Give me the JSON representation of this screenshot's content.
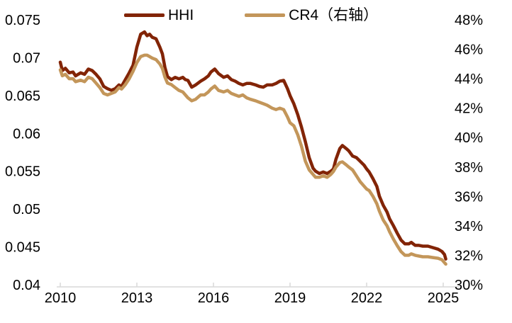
{
  "chart_data": {
    "type": "line",
    "title": "",
    "xlabel": "",
    "ylabel_left": "",
    "ylabel_right": "",
    "legend_position": "top",
    "grid": false,
    "axis_color": "#D9D9D9",
    "text_color": "#000000",
    "x": [
      2010.0,
      2010.08,
      2010.2,
      2010.35,
      2010.5,
      2010.6,
      2010.8,
      2010.95,
      2011.1,
      2011.25,
      2011.4,
      2011.55,
      2011.7,
      2011.85,
      2012.0,
      2012.15,
      2012.3,
      2012.4,
      2012.55,
      2012.7,
      2012.85,
      2013.0,
      2013.15,
      2013.3,
      2013.4,
      2013.5,
      2013.6,
      2013.75,
      2013.9,
      2014.0,
      2014.1,
      2014.2,
      2014.35,
      2014.5,
      2014.65,
      2014.8,
      2014.9,
      2015.0,
      2015.15,
      2015.3,
      2015.5,
      2015.65,
      2015.8,
      2015.9,
      2016.05,
      2016.2,
      2016.4,
      2016.55,
      2016.7,
      2016.85,
      2017.0,
      2017.15,
      2017.3,
      2017.45,
      2017.65,
      2017.8,
      2017.95,
      2018.1,
      2018.3,
      2018.45,
      2018.6,
      2018.75,
      2018.9,
      2019.0,
      2019.15,
      2019.3,
      2019.45,
      2019.6,
      2019.75,
      2019.9,
      2020.0,
      2020.15,
      2020.3,
      2020.45,
      2020.6,
      2020.7,
      2020.8,
      2020.95,
      2021.05,
      2021.2,
      2021.3,
      2021.45,
      2021.6,
      2021.75,
      2021.9,
      2022.0,
      2022.1,
      2022.25,
      2022.4,
      2022.5,
      2022.65,
      2022.8,
      2022.9,
      2023.05,
      2023.2,
      2023.35,
      2023.5,
      2023.65,
      2023.75,
      2023.9,
      2024.05,
      2024.2,
      2024.4,
      2024.6,
      2024.8,
      2024.95,
      2025.05,
      2025.1
    ],
    "series": [
      {
        "name": "HHI",
        "axis": "left",
        "color": "#822406",
        "values": [
          0.0694,
          0.0683,
          0.0686,
          0.068,
          0.0681,
          0.0676,
          0.068,
          0.0678,
          0.0685,
          0.0683,
          0.0678,
          0.0672,
          0.0662,
          0.0659,
          0.0657,
          0.0659,
          0.0664,
          0.0662,
          0.0671,
          0.068,
          0.069,
          0.0714,
          0.0731,
          0.0734,
          0.0729,
          0.0731,
          0.0727,
          0.0725,
          0.0714,
          0.0705,
          0.0687,
          0.0675,
          0.0671,
          0.0674,
          0.0672,
          0.0674,
          0.0671,
          0.067,
          0.0661,
          0.0664,
          0.0669,
          0.0672,
          0.0676,
          0.0681,
          0.0685,
          0.0679,
          0.0674,
          0.0676,
          0.0671,
          0.0669,
          0.0666,
          0.0664,
          0.0666,
          0.0666,
          0.0664,
          0.0662,
          0.0661,
          0.0664,
          0.0664,
          0.0666,
          0.0669,
          0.067,
          0.0659,
          0.065,
          0.0639,
          0.0625,
          0.0608,
          0.0589,
          0.0568,
          0.0554,
          0.055,
          0.0547,
          0.0549,
          0.0547,
          0.055,
          0.0553,
          0.0566,
          0.058,
          0.0584,
          0.058,
          0.0577,
          0.057,
          0.0568,
          0.0563,
          0.0558,
          0.0553,
          0.0549,
          0.054,
          0.053,
          0.0517,
          0.0505,
          0.0496,
          0.0487,
          0.0478,
          0.0468,
          0.0459,
          0.0454,
          0.0454,
          0.0456,
          0.0452,
          0.0452,
          0.0451,
          0.0451,
          0.0449,
          0.0447,
          0.0444,
          0.044,
          0.0434
        ]
      },
      {
        "name": "CR4（右轴）",
        "axis": "right",
        "color": "#C3965A",
        "values": [
          44.6,
          44.2,
          44.3,
          44.0,
          44.0,
          43.8,
          43.9,
          43.8,
          44.1,
          44.0,
          43.7,
          43.4,
          43.0,
          42.9,
          43.0,
          43.1,
          43.4,
          43.3,
          43.6,
          44.0,
          44.5,
          45.1,
          45.5,
          45.6,
          45.6,
          45.5,
          45.4,
          45.3,
          45.0,
          44.7,
          44.1,
          43.7,
          43.6,
          43.4,
          43.2,
          43.1,
          42.9,
          42.7,
          42.5,
          42.6,
          42.9,
          42.9,
          43.1,
          43.3,
          43.5,
          43.2,
          43.1,
          43.2,
          43.0,
          42.9,
          42.8,
          42.9,
          42.7,
          42.6,
          42.5,
          42.4,
          42.3,
          42.2,
          42.0,
          41.9,
          42.0,
          41.9,
          41.4,
          41.0,
          40.8,
          40.2,
          39.4,
          38.4,
          37.8,
          37.5,
          37.3,
          37.3,
          37.4,
          37.3,
          37.5,
          37.7,
          38.0,
          38.3,
          38.35,
          38.15,
          38.0,
          37.8,
          37.4,
          37.0,
          36.7,
          36.5,
          36.4,
          36.0,
          35.5,
          35.0,
          34.4,
          34.0,
          33.6,
          33.1,
          32.65,
          32.25,
          32.0,
          32.0,
          32.1,
          32.0,
          31.95,
          31.9,
          31.9,
          31.85,
          31.8,
          31.7,
          31.5,
          31.4
        ]
      }
    ],
    "left_axis": {
      "min": 0.04,
      "max": 0.075,
      "ticks": [
        "0.075",
        "0.07",
        "0.065",
        "0.06",
        "0.055",
        "0.05",
        "0.045",
        "0.04"
      ]
    },
    "right_axis": {
      "min": 30,
      "max": 48,
      "ticks": [
        "48%",
        "46%",
        "44%",
        "42%",
        "40%",
        "38%",
        "36%",
        "34%",
        "32%",
        "30%"
      ]
    },
    "x_axis": {
      "min": 2010,
      "max": 2025.35,
      "tick_years": [
        2010,
        2013,
        2016,
        2019,
        2022,
        2025
      ],
      "tick_labels": [
        "2010",
        "2013",
        "2016",
        "2019",
        "2022",
        "2025"
      ]
    }
  },
  "legend": {
    "hhi_label": "HHI",
    "cr4_label": "CR4（右轴）"
  }
}
